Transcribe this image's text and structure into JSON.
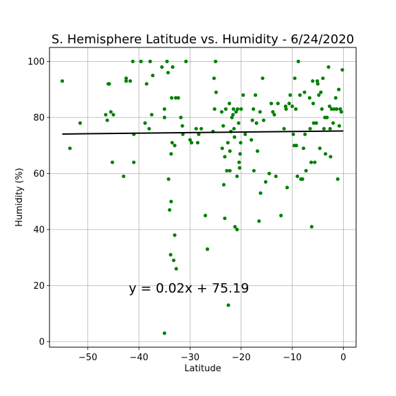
{
  "chart_data": {
    "type": "scatter",
    "title": "S. Hemisphere Latitude vs. Humidity - 6/24/2020",
    "xlabel": "Latitude",
    "ylabel": "Humidity (%)",
    "xlim": [
      -57.5,
      2.5
    ],
    "ylim": [
      -2,
      105
    ],
    "xticks": [
      -50,
      -40,
      -30,
      -20,
      -10,
      0
    ],
    "yticks": [
      0,
      20,
      40,
      60,
      80,
      100
    ],
    "grid": true,
    "marker_color": "#008000",
    "line_color": "#000000",
    "regression": {
      "slope": 0.02,
      "intercept": 75.19,
      "x_range": [
        -55,
        0
      ]
    },
    "annotation": {
      "text": "y = 0.02x + 75.19",
      "x": -42,
      "y": 17.5
    },
    "points": [
      [
        -55,
        93
      ],
      [
        -53.5,
        69
      ],
      [
        -51.5,
        78
      ],
      [
        -46.5,
        81
      ],
      [
        -46.2,
        79
      ],
      [
        -46,
        92
      ],
      [
        -45.8,
        92
      ],
      [
        -45.5,
        82
      ],
      [
        -45.2,
        64
      ],
      [
        -45,
        81
      ],
      [
        -43,
        59
      ],
      [
        -42.5,
        93
      ],
      [
        -42.5,
        94
      ],
      [
        -41.7,
        93
      ],
      [
        -41.2,
        100
      ],
      [
        -41,
        74
      ],
      [
        -41,
        64
      ],
      [
        -39.6,
        100
      ],
      [
        -38.8,
        78
      ],
      [
        -38.5,
        92
      ],
      [
        -38,
        76
      ],
      [
        -37.8,
        100
      ],
      [
        -37.5,
        81
      ],
      [
        -37.3,
        95
      ],
      [
        -35.5,
        98
      ],
      [
        -35,
        80
      ],
      [
        -35,
        83
      ],
      [
        -35,
        3
      ],
      [
        -34.5,
        100
      ],
      [
        -34.3,
        96
      ],
      [
        -34.2,
        58
      ],
      [
        -34,
        47
      ],
      [
        -33.8,
        31
      ],
      [
        -33.7,
        50
      ],
      [
        -33.7,
        67
      ],
      [
        -33.6,
        87
      ],
      [
        -33.5,
        71
      ],
      [
        -33.4,
        98
      ],
      [
        -33.2,
        29
      ],
      [
        -33,
        70
      ],
      [
        -33,
        38
      ],
      [
        -32.8,
        87
      ],
      [
        -32.7,
        26
      ],
      [
        -32.3,
        87
      ],
      [
        -31.8,
        80
      ],
      [
        -31.5,
        77
      ],
      [
        -31.4,
        74
      ],
      [
        -30.8,
        100
      ],
      [
        -30,
        72
      ],
      [
        -29.7,
        71
      ],
      [
        -28.8,
        76
      ],
      [
        -28.5,
        71
      ],
      [
        -28.3,
        74
      ],
      [
        -27.8,
        76
      ],
      [
        -27,
        45
      ],
      [
        -26.6,
        33
      ],
      [
        -25.5,
        75
      ],
      [
        -25.3,
        94
      ],
      [
        -25.2,
        83
      ],
      [
        -25,
        100
      ],
      [
        -24.9,
        89
      ],
      [
        -23.8,
        82
      ],
      [
        -23.7,
        69
      ],
      [
        -23.5,
        77
      ],
      [
        -23.4,
        56
      ],
      [
        -23.2,
        44
      ],
      [
        -23.2,
        66
      ],
      [
        -23,
        83
      ],
      [
        -22.8,
        61
      ],
      [
        -22.6,
        71
      ],
      [
        -22.5,
        13
      ],
      [
        -22.3,
        85
      ],
      [
        -22.2,
        68
      ],
      [
        -22.2,
        61
      ],
      [
        -22,
        75
      ],
      [
        -21.8,
        80
      ],
      [
        -21.6,
        81
      ],
      [
        -21.5,
        83
      ],
      [
        -21.4,
        76
      ],
      [
        -21.3,
        73
      ],
      [
        -21.2,
        41
      ],
      [
        -21,
        82
      ],
      [
        -20.8,
        40
      ],
      [
        -20.8,
        59
      ],
      [
        -20.7,
        83
      ],
      [
        -20.5,
        78
      ],
      [
        -20.4,
        64
      ],
      [
        -20.3,
        62
      ],
      [
        -20.2,
        67
      ],
      [
        -20.1,
        71
      ],
      [
        -20,
        83
      ],
      [
        -19.6,
        88
      ],
      [
        -19.2,
        74
      ],
      [
        -18,
        72
      ],
      [
        -17.8,
        79
      ],
      [
        -17.6,
        83
      ],
      [
        -17.5,
        61
      ],
      [
        -17.2,
        88
      ],
      [
        -17,
        78
      ],
      [
        -16.8,
        68
      ],
      [
        -16.5,
        43
      ],
      [
        -16.3,
        82
      ],
      [
        -16.2,
        53
      ],
      [
        -15.8,
        94
      ],
      [
        -15.6,
        79
      ],
      [
        -15.2,
        57
      ],
      [
        -14.5,
        60
      ],
      [
        -14.1,
        85
      ],
      [
        -13.8,
        82
      ],
      [
        -13.5,
        81
      ],
      [
        -13.2,
        59
      ],
      [
        -12.8,
        85
      ],
      [
        -12.2,
        45
      ],
      [
        -11.6,
        76
      ],
      [
        -11.3,
        84
      ],
      [
        -11.2,
        83
      ],
      [
        -11,
        55
      ],
      [
        -10.6,
        85
      ],
      [
        -10.4,
        88
      ],
      [
        -10,
        84
      ],
      [
        -9.8,
        74
      ],
      [
        -9.6,
        70
      ],
      [
        -9.5,
        94
      ],
      [
        -9.3,
        83
      ],
      [
        -9.2,
        70
      ],
      [
        -9,
        59
      ],
      [
        -8.8,
        100
      ],
      [
        -8.5,
        88
      ],
      [
        -8.3,
        58
      ],
      [
        -8,
        58
      ],
      [
        -7.8,
        69
      ],
      [
        -7.6,
        89
      ],
      [
        -7.5,
        74
      ],
      [
        -7.3,
        61
      ],
      [
        -6.6,
        87
      ],
      [
        -6.5,
        76
      ],
      [
        -6.3,
        64
      ],
      [
        -6.2,
        41
      ],
      [
        -6,
        93
      ],
      [
        -5.9,
        85
      ],
      [
        -5.8,
        78
      ],
      [
        -5.6,
        64
      ],
      [
        -5.3,
        78
      ],
      [
        -5.1,
        93
      ],
      [
        -5,
        92
      ],
      [
        -4.8,
        88
      ],
      [
        -4.6,
        69
      ],
      [
        -4.4,
        89
      ],
      [
        -4.2,
        83
      ],
      [
        -4,
        94
      ],
      [
        -3.8,
        76
      ],
      [
        -3.6,
        80
      ],
      [
        -3.5,
        67
      ],
      [
        -3.2,
        80
      ],
      [
        -2.9,
        98
      ],
      [
        -2.7,
        84
      ],
      [
        -2.6,
        76
      ],
      [
        -2.5,
        66
      ],
      [
        -2.3,
        83
      ],
      [
        -2,
        78
      ],
      [
        -1.8,
        83
      ],
      [
        -1.5,
        87
      ],
      [
        -1.3,
        83
      ],
      [
        -1.1,
        58
      ],
      [
        -0.9,
        90
      ],
      [
        -0.8,
        77
      ],
      [
        -0.6,
        83
      ],
      [
        -0.4,
        82
      ],
      [
        -0.2,
        97
      ]
    ]
  }
}
